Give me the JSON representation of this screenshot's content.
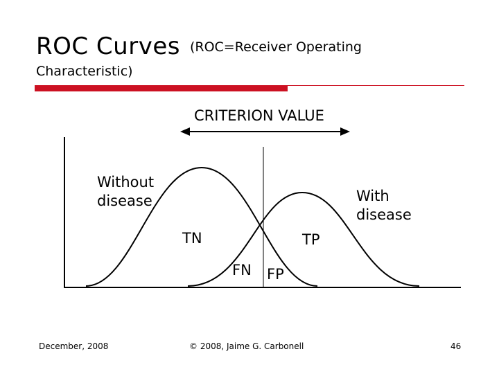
{
  "slide": {
    "title": "ROC Curves",
    "subtitle_line1": "(ROC=Receiver Operating",
    "subtitle_line2": "Characteristic)"
  },
  "diagram": {
    "criterion_label": "CRITERION VALUE",
    "without_disease_line1": "Without",
    "without_disease_line2": "disease",
    "with_disease_line1": "With",
    "with_disease_line2": "disease",
    "tn": "TN",
    "tp": "TP",
    "fn": "FN",
    "fp": "FP"
  },
  "footer": {
    "date": "December, 2008",
    "copyright": "© 2008, Jaime G. Carbonell",
    "page_number": "46"
  },
  "colors": {
    "accent": "#cc1122"
  }
}
